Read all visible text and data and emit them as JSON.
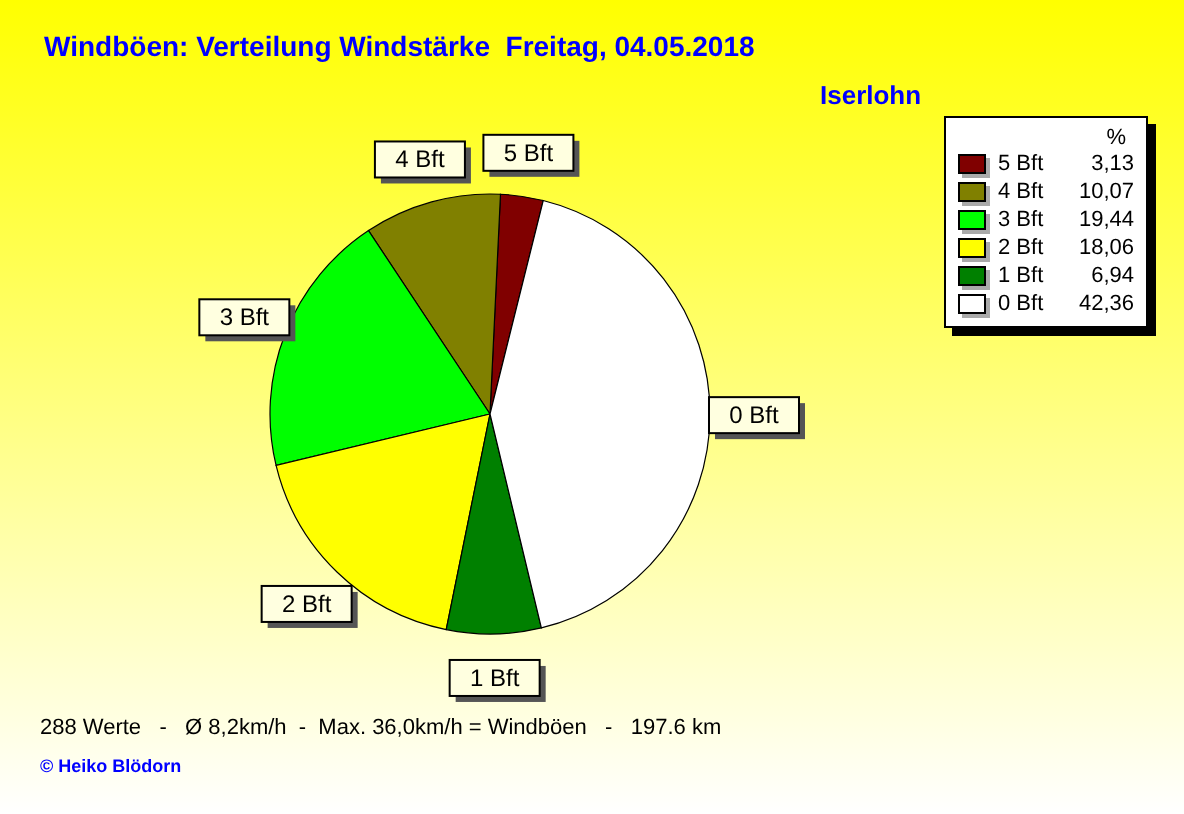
{
  "chart_data": {
    "type": "pie",
    "title": "Windböen: Verteilung Windstärke  Freitag, 04.05.2018",
    "subtitle": "Iserlohn",
    "legend_title": "%",
    "categories": [
      "5 Bft",
      "4 Bft",
      "3 Bft",
      "2 Bft",
      "1 Bft",
      "0 Bft"
    ],
    "values": [
      3.13,
      10.07,
      19.44,
      18.06,
      6.94,
      42.36
    ],
    "value_labels": [
      "3,13",
      "10,07",
      "19,44",
      "18,06",
      "6,94",
      "42,36"
    ],
    "colors": [
      "#800000",
      "#808000",
      "#00ff00",
      "#ffff00",
      "#008000",
      "#ffffff"
    ],
    "legend": "top right",
    "annotations": [
      "288 Werte   -   Ø 8,2km/h  -  Max. 36,0km/h = Windböen   -   197.6 km",
      "© Heiko Blödorn"
    ]
  }
}
